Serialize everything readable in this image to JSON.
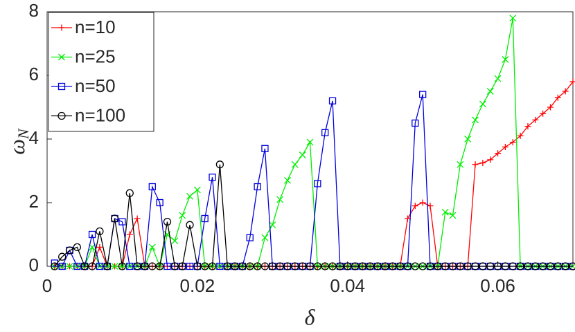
{
  "chart_data": {
    "type": "line",
    "x_label": "δ",
    "y_label": "ω",
    "y_label_subscript": "N",
    "x": [
      0.001,
      0.002,
      0.003,
      0.004,
      0.005,
      0.006,
      0.007,
      0.008,
      0.009,
      0.01,
      0.011,
      0.012,
      0.013,
      0.014,
      0.015,
      0.016,
      0.017,
      0.018,
      0.019,
      0.02,
      0.021,
      0.022,
      0.023,
      0.024,
      0.025,
      0.026,
      0.027,
      0.028,
      0.029,
      0.03,
      0.031,
      0.032,
      0.033,
      0.034,
      0.035,
      0.036,
      0.037,
      0.038,
      0.039,
      0.04,
      0.041,
      0.042,
      0.043,
      0.044,
      0.045,
      0.046,
      0.047,
      0.048,
      0.049,
      0.05,
      0.051,
      0.052,
      0.053,
      0.054,
      0.055,
      0.056,
      0.057,
      0.058,
      0.059,
      0.06,
      0.061,
      0.062,
      0.063,
      0.064,
      0.065,
      0.066,
      0.067,
      0.068,
      0.069,
      0.07
    ],
    "series": [
      {
        "name": "n=10",
        "color": "#ff0000",
        "marker": "plus",
        "values": [
          0,
          0,
          0,
          0,
          0,
          0,
          0.6,
          0,
          0,
          0,
          1.0,
          1.5,
          0,
          0,
          0,
          0,
          0,
          0,
          0,
          0,
          0,
          0,
          0,
          0,
          0,
          0,
          0,
          0,
          0,
          0,
          0,
          0,
          0,
          0,
          0,
          0,
          0,
          0,
          0,
          0,
          0,
          0,
          0,
          0,
          0,
          0,
          0,
          1.5,
          1.9,
          2.0,
          1.9,
          0,
          0,
          0,
          0,
          0,
          3.2,
          3.25,
          3.35,
          3.55,
          3.75,
          3.9,
          4.1,
          4.4,
          4.6,
          4.8,
          5.0,
          5.3,
          5.5,
          5.8
        ]
      },
      {
        "name": "n=25",
        "color": "#00ee00",
        "marker": "cross",
        "values": [
          0,
          0,
          0,
          0,
          0,
          0.6,
          0,
          0,
          0,
          0,
          0,
          0,
          0,
          0.6,
          0,
          1.0,
          0.8,
          1.6,
          2.2,
          2.4,
          0,
          0,
          0,
          0,
          0,
          0,
          0,
          0,
          0.9,
          1.3,
          2.1,
          2.7,
          3.2,
          3.5,
          3.9,
          0,
          0,
          0,
          0,
          0,
          0,
          0,
          0,
          0,
          0,
          0,
          0,
          0,
          0,
          0,
          0,
          0,
          1.7,
          1.6,
          3.2,
          4.0,
          4.6,
          5.1,
          5.5,
          5.9,
          6.5,
          7.8,
          0,
          0,
          0,
          0,
          0,
          0,
          0,
          0
        ]
      },
      {
        "name": "n=50",
        "color": "#0000dd",
        "marker": "square",
        "values": [
          0.1,
          0,
          0.5,
          0,
          0,
          1.0,
          0,
          0,
          1.5,
          1.4,
          0,
          0,
          0,
          2.5,
          2.0,
          0,
          0,
          0,
          0,
          0,
          1.5,
          2.8,
          0,
          0,
          0,
          0,
          0.9,
          2.5,
          3.7,
          0,
          0,
          0,
          0,
          0,
          0,
          2.6,
          4.2,
          5.2,
          0,
          0,
          0,
          0,
          0,
          0,
          0,
          0,
          0,
          0,
          4.5,
          5.4,
          0,
          0,
          0,
          0,
          0,
          0,
          0,
          0,
          0,
          0,
          0,
          0,
          0,
          0,
          0,
          0,
          0,
          0,
          0,
          0
        ]
      },
      {
        "name": "n=100",
        "color": "#000000",
        "marker": "circle",
        "values": [
          0,
          0.3,
          0.5,
          0.6,
          0,
          0,
          1.1,
          0,
          1.5,
          0,
          2.3,
          0,
          0,
          0,
          0,
          1.4,
          0,
          0,
          1.3,
          0,
          0,
          0,
          3.2,
          0,
          0,
          0,
          0,
          0,
          0,
          0,
          0,
          0,
          0,
          0,
          0,
          0,
          0,
          0,
          0,
          0,
          0,
          0,
          0,
          0,
          0,
          0,
          0,
          0,
          0,
          0,
          0,
          0,
          0,
          0,
          0,
          0,
          0,
          0,
          0,
          0,
          0,
          0,
          0,
          0,
          0,
          0,
          0,
          0,
          0,
          0
        ]
      }
    ],
    "xlim": [
      0,
      0.07
    ],
    "xticks": [
      0,
      0.02,
      0.04,
      0.06
    ],
    "ylim": [
      0,
      8
    ],
    "yticks": [
      0,
      2,
      4,
      6,
      8
    ],
    "legend": "top-left"
  }
}
